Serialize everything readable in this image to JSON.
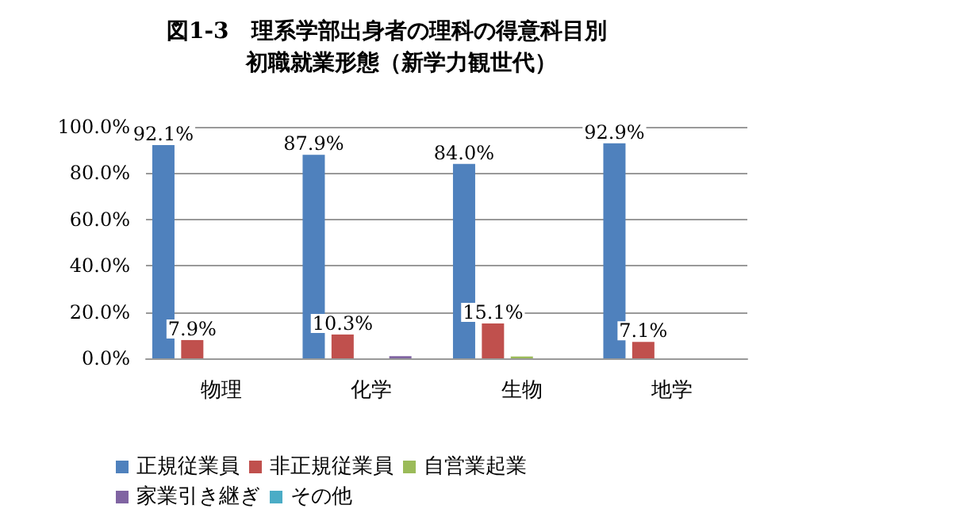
{
  "chart_data": {
    "type": "bar",
    "title": "図1-3　理系学部出身者の理科の得意科目別",
    "subtitle": "初職就業形態（新学力観世代）",
    "categories": [
      "物理",
      "化学",
      "生物",
      "地学"
    ],
    "series": [
      {
        "name": "正規従業員",
        "color": "#4f81bd",
        "values": [
          92.1,
          87.9,
          84.0,
          92.9
        ],
        "value_labels": [
          "92.1%",
          "87.9%",
          "84.0%",
          "92.9%"
        ]
      },
      {
        "name": "非正規従業員",
        "color": "#c0504d",
        "values": [
          7.9,
          10.3,
          15.1,
          7.1
        ],
        "value_labels": [
          "7.9%",
          "10.3%",
          "15.1%",
          "7.1%"
        ]
      },
      {
        "name": "自営業起業",
        "color": "#9bbb59",
        "values": [
          0,
          0,
          0.8,
          0
        ]
      },
      {
        "name": "家業引き継ぎ",
        "color": "#8064a2",
        "values": [
          0,
          0.9,
          0,
          0
        ]
      },
      {
        "name": "その他",
        "color": "#4bacc6",
        "values": [
          0,
          0,
          0,
          0
        ]
      }
    ],
    "ylim": [
      0,
      100
    ],
    "yticks": [
      {
        "value": 0,
        "label": "0.0%"
      },
      {
        "value": 20,
        "label": "20.0%"
      },
      {
        "value": 40,
        "label": "40.0%"
      },
      {
        "value": 60,
        "label": "60.0%"
      },
      {
        "value": 80,
        "label": "80.0%"
      },
      {
        "value": 100,
        "label": "100.0%"
      }
    ],
    "grid": "y",
    "legend": "bottom"
  }
}
